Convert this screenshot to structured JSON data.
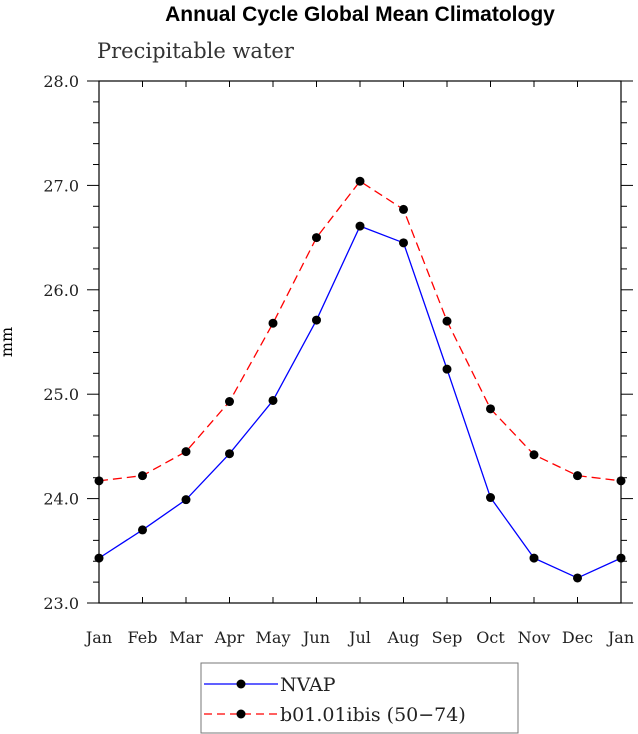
{
  "chart_data": {
    "type": "line",
    "title": "Annual Cycle Global Mean Climatology",
    "subtitle": "Precipitable water",
    "xlabel": "",
    "ylabel": "mm",
    "categories": [
      "Jan",
      "Feb",
      "Mar",
      "Apr",
      "May",
      "Jun",
      "Jul",
      "Aug",
      "Sep",
      "Oct",
      "Nov",
      "Dec",
      "Jan"
    ],
    "ylim": [
      23.0,
      28.0
    ],
    "yticks": [
      "23.0",
      "24.0",
      "25.0",
      "26.0",
      "27.0",
      "28.0"
    ],
    "grid": false,
    "legend_position": "bottom-center",
    "series": [
      {
        "name": "NVAP",
        "color": "#0000ff",
        "dash": "solid",
        "values": [
          23.43,
          23.7,
          23.99,
          24.43,
          24.94,
          25.71,
          26.61,
          26.45,
          25.24,
          24.01,
          23.43,
          23.24,
          23.43
        ]
      },
      {
        "name": "b01.01ibis (50−74)",
        "color": "#ff0000",
        "dash": "dashed",
        "values": [
          24.17,
          24.22,
          24.45,
          24.93,
          25.68,
          26.5,
          27.04,
          26.77,
          25.7,
          24.86,
          24.42,
          24.22,
          24.17
        ]
      }
    ]
  }
}
